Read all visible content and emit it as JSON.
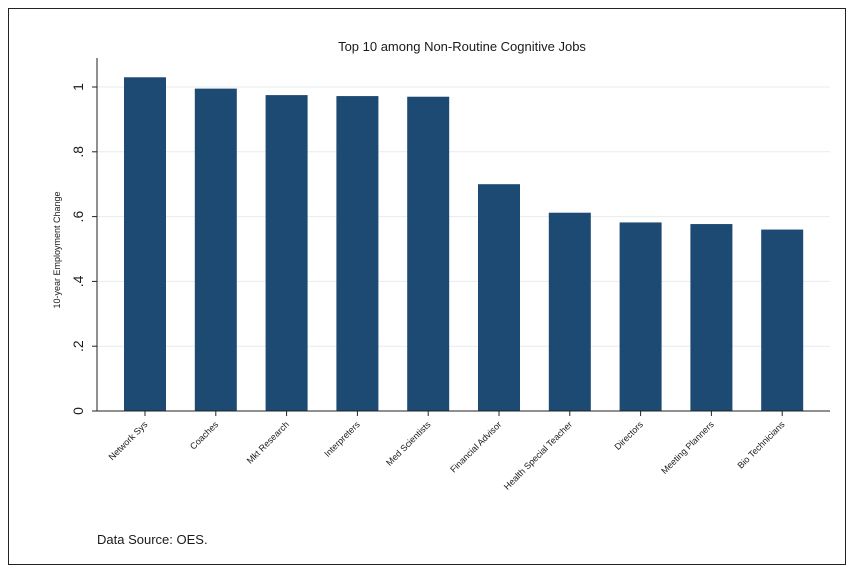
{
  "chart_data": {
    "type": "bar",
    "title": "Top 10 among Non-Routine Cognitive Jobs",
    "xlabel": "",
    "ylabel": "10-year Employment Change",
    "ylim": [
      0,
      1.05
    ],
    "yticks": [
      0,
      0.2,
      0.4,
      0.6,
      0.8,
      1
    ],
    "ytick_labels": [
      "0",
      ".2",
      ".4",
      ".6",
      ".8",
      "1"
    ],
    "grid": true,
    "categories": [
      "Network Sys",
      "Coaches",
      "Mkt Research",
      "Interpreters",
      "Med Scientists",
      "Financial Advisor",
      "Health Special Teacher",
      "Directors",
      "Meeting Planners",
      "Bio Technicians"
    ],
    "values": [
      1.03,
      0.995,
      0.975,
      0.972,
      0.97,
      0.7,
      0.612,
      0.582,
      0.577,
      0.56
    ],
    "bar_color": "#1c4a73",
    "note": "Data Source: OES."
  }
}
